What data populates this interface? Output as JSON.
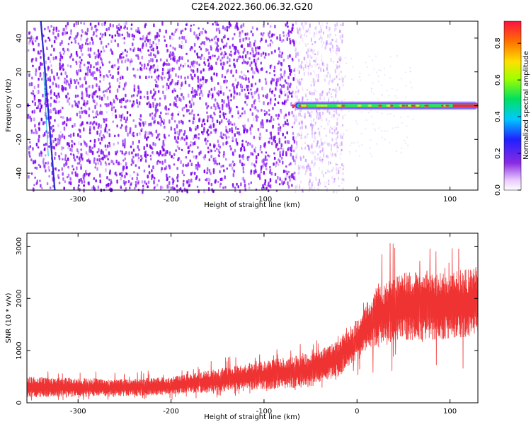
{
  "title": "C2E4.2022.360.06.32.G20",
  "chart_data": [
    {
      "type": "heatmap",
      "xlabel": "Height of straight line (km)",
      "ylabel": "Frequency (Hz)",
      "xlim": [
        -355,
        130
      ],
      "ylim": [
        -50,
        50
      ],
      "xticks": [
        -300,
        -200,
        -100,
        0,
        100
      ],
      "yticks": [
        40,
        20,
        0,
        -20,
        -40
      ],
      "regions": [
        {
          "name": "broadband noise",
          "x_range": [
            -355,
            -68
          ],
          "y_range": [
            -50,
            50
          ],
          "value": 0.15
        },
        {
          "name": "faint noise",
          "x_range": [
            -68,
            -15
          ],
          "y_range": [
            -50,
            50
          ],
          "value": 0.05
        },
        {
          "name": "carrier line",
          "x_range": [
            -68,
            130
          ],
          "y": 0,
          "value": 0.9
        }
      ],
      "streak": {
        "x": [
          -340,
          -325
        ],
        "y": [
          50,
          -50
        ],
        "value": 0.35
      },
      "colorbar": {
        "label": "Normalized spectral amplitude",
        "range": [
          0,
          0.92
        ],
        "ticks": [
          "0.0",
          "0.2",
          "0.4",
          "0.6",
          "0.8"
        ]
      }
    },
    {
      "type": "line",
      "xlabel": "Height of straight line (km)",
      "ylabel": "SNR (10 * v/v)",
      "xlim": [
        -355,
        130
      ],
      "ylim": [
        0,
        3250
      ],
      "xticks": [
        -300,
        -200,
        -100,
        0,
        100
      ],
      "yticks": [
        0,
        1000,
        2000,
        3000
      ],
      "color": "#ef3333",
      "envelope": {
        "x": [
          -355,
          -300,
          -250,
          -200,
          -150,
          -100,
          -50,
          -20,
          0,
          20,
          50,
          100,
          130
        ],
        "lower": [
          100,
          120,
          130,
          150,
          200,
          250,
          300,
          500,
          800,
          1100,
          1200,
          1200,
          1300
        ],
        "upper": [
          500,
          480,
          450,
          500,
          650,
          800,
          950,
          1200,
          1600,
          2200,
          2500,
          2500,
          2600
        ]
      }
    }
  ]
}
